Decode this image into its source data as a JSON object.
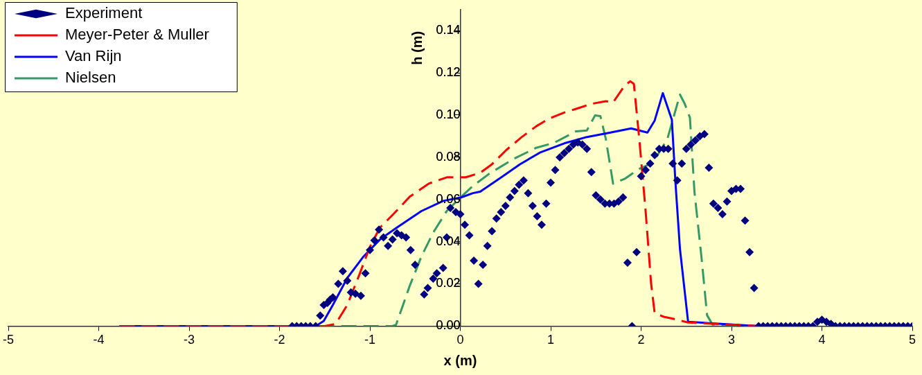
{
  "chart_data": {
    "type": "line",
    "xlabel": "x (m)",
    "ylabel": "h (m)",
    "xlim": [
      -5,
      5
    ],
    "xticks": [
      -5,
      -4,
      -3,
      -2,
      -1,
      0,
      1,
      2,
      3,
      4,
      5
    ],
    "ylim": [
      0,
      0.15
    ],
    "yticks": [
      {
        "value": 0,
        "label": "0.00"
      },
      {
        "value": 0.02,
        "label": "0.02"
      },
      {
        "value": 0.04,
        "label": "0.04"
      },
      {
        "value": 0.06,
        "label": "0.06"
      },
      {
        "value": 0.08,
        "label": "0.08"
      },
      {
        "value": 0.1,
        "label": "0.10"
      },
      {
        "value": 0.12,
        "label": "0.12"
      },
      {
        "value": 0.14,
        "label": "0.14"
      }
    ],
    "grid": false,
    "legend": "top left",
    "series": [
      {
        "name": "Experiment",
        "type": "scatter",
        "marker": "diamond",
        "color": "#000080",
        "x": [
          -1.86,
          -1.81,
          -1.76,
          -1.71,
          -1.66,
          -1.6,
          -1.55,
          -1.51,
          -1.47,
          -1.44,
          -1.41,
          -1.35,
          -1.3,
          -1.25,
          -1.21,
          -1.16,
          -1.1,
          -1.05,
          -1,
          -0.95,
          -0.9,
          -0.85,
          -0.8,
          -0.75,
          -0.7,
          -0.65,
          -0.6,
          -0.55,
          -0.5,
          -0.4,
          -0.36,
          -0.3,
          -0.26,
          -0.19,
          -0.15,
          -0.11,
          -0.05,
          0,
          0.05,
          0.1,
          0.15,
          0.2,
          0.25,
          0.3,
          0.35,
          0.4,
          0.45,
          0.5,
          0.55,
          0.6,
          0.65,
          0.7,
          0.75,
          0.8,
          0.85,
          0.9,
          0.95,
          1,
          1.05,
          1.1,
          1.15,
          1.2,
          1.25,
          1.3,
          1.35,
          1.4,
          1.45,
          1.5,
          1.55,
          1.6,
          1.65,
          1.7,
          1.75,
          1.8,
          1.85,
          1.9,
          1.95,
          2,
          2.05,
          2.1,
          2.15,
          2.2,
          2.25,
          2.3,
          2.35,
          2.4,
          2.45,
          2.5,
          2.55,
          2.6,
          2.65,
          2.7,
          2.75,
          2.8,
          2.85,
          2.9,
          2.95,
          3,
          3.05,
          3.1,
          3.15,
          3.2,
          3.25,
          3.3,
          3.35,
          3.4,
          3.45,
          3.5,
          3.55,
          3.6,
          3.65,
          3.7,
          3.75,
          3.8,
          3.85,
          3.9,
          3.95,
          4,
          4.05,
          4.1,
          4.15,
          4.2,
          4.25,
          4.3,
          4.35,
          4.4,
          4.45,
          4.5,
          4.55,
          4.6,
          4.65,
          4.7,
          4.75,
          4.8,
          4.85,
          4.9,
          4.95,
          5
        ],
        "values": [
          0,
          0,
          0,
          0,
          0,
          0,
          0.005,
          0.01,
          0.011,
          0.0125,
          0.0136,
          0.02,
          0.026,
          0.0215,
          0.016,
          0.0153,
          0.0143,
          0.025,
          0.036,
          0.0406,
          0.0457,
          0.042,
          0.038,
          0.041,
          0.044,
          0.043,
          0.042,
          0.036,
          0.029,
          0.015,
          0.018,
          0.0225,
          0.025,
          0.0276,
          0.042,
          0.056,
          0.054,
          0.053,
          0.048,
          0.043,
          0.031,
          0.02,
          0.029,
          0.038,
          0.045,
          0.051,
          0.054,
          0.057,
          0.061,
          0.064,
          0.067,
          0.069,
          0.063,
          0.057,
          0.052,
          0.048,
          0.058,
          0.068,
          0.074,
          0.08,
          0.082,
          0.084,
          0.086,
          0.087,
          0.086,
          0.084,
          0.073,
          0.062,
          0.06,
          0.058,
          0.058,
          0.058,
          0.059,
          0.061,
          0.03,
          0,
          0.035,
          0.071,
          0.074,
          0.077,
          0.081,
          0.084,
          0.084,
          0.084,
          0.077,
          0.069,
          0.077,
          0.084,
          0.086,
          0.088,
          0.09,
          0.091,
          0.075,
          0.058,
          0.056,
          0.053,
          0.059,
          0.064,
          0.065,
          0.065,
          0.05,
          0.035,
          0.018,
          0,
          0,
          0,
          0,
          0,
          0,
          0,
          0,
          0,
          0,
          0,
          0,
          0,
          0.002,
          0.003,
          0.002,
          0.001,
          0,
          0,
          0,
          0,
          0,
          0,
          0,
          0,
          0,
          0,
          0,
          0,
          0,
          0,
          0,
          0,
          0,
          0
        ]
      },
      {
        "name": "Meyer-Peter & Muller",
        "type": "line",
        "line_style": "dashed",
        "color": "#ff0000",
        "x": [
          -3.77,
          -1.5,
          -1.38,
          -1.25,
          -1.12,
          -1,
          -0.89,
          -0.73,
          -0.56,
          -0.35,
          -0.15,
          0,
          0.06,
          0.22,
          0.35,
          0.51,
          0.68,
          0.84,
          0.99,
          1.15,
          1.3,
          1.45,
          1.61,
          1.69,
          1.82,
          1.88,
          1.92,
          1.98,
          2.05,
          2.11,
          2.15,
          2.25,
          2.36,
          2.52,
          3.3
        ],
        "values": [
          0,
          0,
          0.001,
          0.01,
          0.024,
          0.0375,
          0.0466,
          0.0535,
          0.0613,
          0.0675,
          0.0705,
          0.0705,
          0.0705,
          0.0726,
          0.0767,
          0.0835,
          0.0896,
          0.0947,
          0.0985,
          0.1012,
          0.1032,
          0.1053,
          0.1066,
          0.106,
          0.1141,
          0.116,
          0.1148,
          0.0886,
          0.0545,
          0.0204,
          0.0061,
          0.0044,
          0.0034,
          0.0017,
          0
        ]
      },
      {
        "name": "Van Rijn",
        "type": "line",
        "line_style": "solid",
        "color": "#0000ff",
        "x": [
          -3.77,
          -1.6,
          -1.51,
          -1.41,
          -1.25,
          -1.07,
          -0.89,
          -0.69,
          -0.43,
          -0.19,
          0.01,
          0.14,
          0.22,
          0.42,
          0.66,
          0.89,
          1.15,
          1.4,
          1.66,
          1.89,
          2.07,
          2.15,
          2.24,
          2.34,
          2.38,
          2.43,
          2.52,
          3.3
        ],
        "values": [
          0,
          0,
          0.0024,
          0.01,
          0.0228,
          0.033,
          0.041,
          0.047,
          0.0545,
          0.0593,
          0.061,
          0.063,
          0.0637,
          0.0695,
          0.0767,
          0.0824,
          0.0866,
          0.0896,
          0.0917,
          0.0937,
          0.0917,
          0.0974,
          0.1104,
          0.0978,
          0.068,
          0.0365,
          0.002,
          0
        ]
      },
      {
        "name": "Nielsen",
        "type": "line",
        "line_style": "dashed",
        "color": "#339966",
        "x": [
          -3.77,
          -0.75,
          -0.71,
          -0.56,
          -0.43,
          -0.3,
          -0.15,
          0.01,
          0.14,
          0.32,
          0.58,
          0.84,
          1.04,
          1.28,
          1.4,
          1.49,
          1.55,
          1.61,
          1.69,
          1.82,
          1.97,
          2.13,
          2.29,
          2.43,
          2.48,
          2.54,
          2.59,
          2.67,
          2.73,
          2.79,
          3.3
        ],
        "values": [
          0,
          0,
          0.0007,
          0.019,
          0.033,
          0.0443,
          0.0545,
          0.0613,
          0.0664,
          0.0722,
          0.079,
          0.0845,
          0.0869,
          0.0923,
          0.0927,
          0.0998,
          0.0995,
          0.0886,
          0.0675,
          0.0698,
          0.0743,
          0.0774,
          0.0886,
          0.1097,
          0.1056,
          0.0988,
          0.0637,
          0.0317,
          0.0051,
          0.0007,
          0
        ]
      }
    ]
  }
}
